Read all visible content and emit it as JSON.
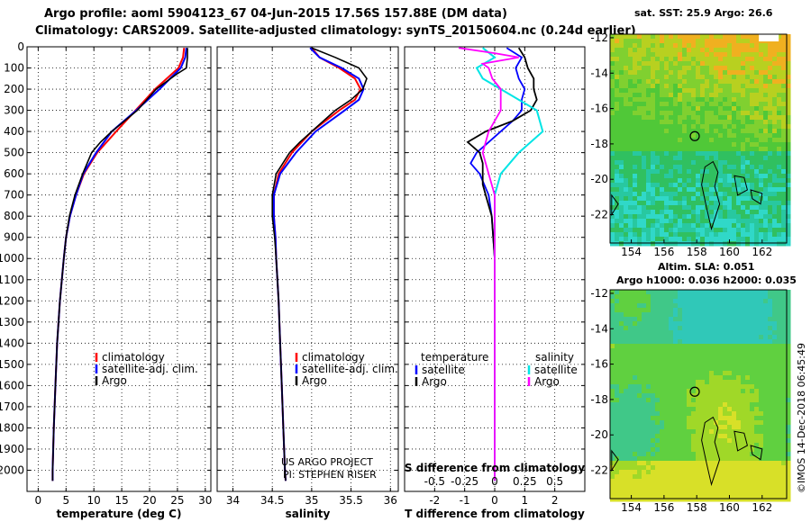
{
  "header": {
    "title_line1": "Argo profile: aoml 5904123_67 04-Jun-2015 17.56S 157.88E (DM data)",
    "title_line2": "Climatology: CARS2009. Satellite-adjusted climatology: synTS_20150604.nc (0.24d earlier)"
  },
  "colors": {
    "climatology": "#ff0000",
    "satellite": "#0000ff",
    "argo": "#000000",
    "sat_salinity": "#00e5e5",
    "argo_salinity": "#ff00ff"
  },
  "credits": {
    "project": "US ARGO PROJECT",
    "pi": "PI: STEPHEN RISER",
    "imos": "©IMOS 14-Dec-2018 06:45:49"
  },
  "maps": {
    "sst_title": "sat. SST: 25.9 Argo: 26.6",
    "sla_title_line1": "Altim. SLA: 0.051",
    "sla_title_line2": "Argo h1000: 0.036 h2000: 0.035",
    "x_ticks": [
      154,
      156,
      158,
      160,
      162
    ],
    "y_ticks": [
      -12,
      -14,
      -16,
      -18,
      -20,
      -22
    ],
    "lon_range": [
      152.7,
      163.5
    ],
    "lat_range": [
      -23.6,
      -11.8
    ],
    "float_position": {
      "lon": 157.88,
      "lat": -17.56
    }
  },
  "chart_data": [
    {
      "type": "line",
      "panel": "temperature",
      "xlabel": "temperature (deg C)",
      "ylabel": "",
      "xlim": [
        -2,
        31
      ],
      "ylim": [
        2100,
        0
      ],
      "x_ticks": [
        0,
        5,
        10,
        15,
        20,
        25,
        30
      ],
      "y_ticks": [
        0,
        100,
        200,
        300,
        400,
        500,
        600,
        700,
        800,
        900,
        1000,
        1100,
        1200,
        1300,
        1400,
        1500,
        1600,
        1700,
        1800,
        1900,
        2000
      ],
      "legend": [
        "climatology",
        "satellite-adj. clim.",
        "Argo"
      ],
      "series": [
        {
          "name": "climatology",
          "depth": [
            5,
            50,
            100,
            200,
            300,
            400,
            500,
            600,
            700,
            800,
            900,
            1000,
            1200,
            1400,
            1600,
            1800,
            2000,
            2050
          ],
          "values": [
            26.2,
            26.0,
            25.2,
            21.0,
            17.5,
            14.0,
            10.6,
            8.2,
            6.8,
            5.7,
            5.0,
            4.6,
            3.9,
            3.4,
            3.1,
            2.8,
            2.6,
            2.6
          ]
        },
        {
          "name": "satellite-adj. clim.",
          "depth": [
            5,
            50,
            100,
            200,
            300,
            400,
            500,
            600,
            700,
            800,
            900,
            1000,
            1200,
            1400,
            1600,
            1800,
            2000,
            2050
          ],
          "values": [
            26.6,
            26.4,
            25.6,
            21.8,
            17.6,
            13.2,
            10.4,
            8.1,
            6.8,
            5.7,
            5.0,
            4.6,
            3.9,
            3.4,
            3.1,
            2.8,
            2.6,
            2.6
          ]
        },
        {
          "name": "Argo",
          "depth": [
            5,
            50,
            100,
            130,
            200,
            300,
            400,
            450,
            500,
            600,
            700,
            800,
            900,
            1000,
            1200,
            1400,
            1600,
            1800,
            2000,
            2050
          ],
          "values": [
            26.8,
            26.8,
            26.6,
            24.8,
            21.2,
            17.8,
            13.2,
            11.2,
            9.6,
            8.0,
            6.6,
            5.6,
            5.0,
            4.6,
            3.9,
            3.4,
            3.1,
            2.8,
            2.6,
            2.6
          ]
        }
      ]
    },
    {
      "type": "line",
      "panel": "salinity",
      "xlabel": "salinity",
      "xlim": [
        33.8,
        36.1
      ],
      "ylim": [
        2100,
        0
      ],
      "x_ticks": [
        34,
        34.5,
        35,
        35.5,
        36
      ],
      "legend": [
        "climatology",
        "satellite-adj. clim.",
        "Argo"
      ],
      "series": [
        {
          "name": "climatology",
          "depth": [
            5,
            50,
            100,
            150,
            200,
            250,
            300,
            400,
            500,
            600,
            700,
            800,
            900,
            1000,
            1200,
            1400,
            1600,
            1800,
            2000,
            2050
          ],
          "values": [
            35.0,
            35.1,
            35.35,
            35.55,
            35.62,
            35.55,
            35.35,
            35.0,
            34.75,
            34.58,
            34.52,
            34.52,
            34.54,
            34.55,
            34.58,
            34.6,
            34.62,
            34.64,
            34.66,
            34.67
          ]
        },
        {
          "name": "satellite-adj. clim.",
          "depth": [
            5,
            50,
            100,
            150,
            200,
            250,
            300,
            400,
            500,
            600,
            700,
            800,
            900,
            1000,
            1200,
            1400,
            1600,
            1800,
            2000,
            2050
          ],
          "values": [
            34.98,
            35.1,
            35.38,
            35.6,
            35.66,
            35.6,
            35.42,
            35.05,
            34.8,
            34.6,
            34.52,
            34.52,
            34.54,
            34.55,
            34.58,
            34.6,
            34.62,
            34.64,
            34.66,
            34.67
          ]
        },
        {
          "name": "Argo",
          "depth": [
            5,
            50,
            100,
            150,
            200,
            250,
            300,
            400,
            450,
            500,
            600,
            700,
            800,
            900,
            1000,
            1200,
            1400,
            1600,
            1800,
            2000,
            2050
          ],
          "values": [
            35.0,
            35.3,
            35.6,
            35.7,
            35.65,
            35.5,
            35.3,
            35.0,
            34.85,
            34.72,
            34.55,
            34.5,
            34.5,
            34.53,
            34.55,
            34.58,
            34.6,
            34.62,
            34.64,
            34.66,
            34.67
          ]
        }
      ]
    },
    {
      "type": "line",
      "panel": "difference",
      "xlabel": "T difference from climatology",
      "top_axis_label": "S difference from climatology",
      "xlim": [
        -3,
        3
      ],
      "ylim": [
        2100,
        0
      ],
      "x_ticks": [
        -2,
        -1,
        0,
        1,
        2
      ],
      "x_tick_labels": [
        "-2",
        "-1",
        "0",
        "1",
        "2"
      ],
      "s_ticks": [
        "-0.5",
        "-0.25",
        "0",
        "0.25",
        "0.5"
      ],
      "legend_temperature_title": "temperature",
      "legend_salinity_title": "salinity",
      "legend": [
        "satellite",
        "Argo",
        "satellite",
        "Argo"
      ],
      "series": [
        {
          "name": "T satellite",
          "depth": [
            5,
            50,
            100,
            150,
            200,
            250,
            300,
            350,
            400,
            450,
            500,
            550,
            600,
            700,
            800,
            1000,
            1200,
            1500,
            2050
          ],
          "values": [
            0.4,
            0.9,
            0.7,
            0.8,
            1.0,
            0.9,
            0.9,
            0.6,
            0.2,
            -0.2,
            -0.6,
            -0.8,
            -0.5,
            -0.2,
            -0.1,
            0,
            0,
            0,
            0
          ]
        },
        {
          "name": "T Argo",
          "depth": [
            5,
            50,
            100,
            150,
            200,
            250,
            300,
            350,
            400,
            450,
            500,
            550,
            600,
            650,
            700,
            750,
            800,
            1000,
            1200,
            1500,
            2050
          ],
          "values": [
            0.8,
            1.0,
            1.1,
            1.3,
            1.3,
            1.4,
            1.2,
            0.6,
            -0.3,
            -0.9,
            -0.5,
            -0.4,
            -0.4,
            -0.4,
            -0.3,
            -0.2,
            -0.1,
            0,
            0,
            0,
            0
          ]
        },
        {
          "name": "S satellite",
          "depth": [
            5,
            50,
            100,
            150,
            200,
            300,
            400,
            500,
            600,
            700,
            800,
            1000,
            1500,
            2050
          ],
          "values": [
            -0.1,
            0.0,
            -0.15,
            -0.1,
            0.05,
            0.35,
            0.4,
            0.2,
            0.05,
            0.0,
            0.0,
            0.0,
            0.0,
            0.0
          ]
        },
        {
          "name": "S Argo",
          "depth": [
            5,
            30,
            50,
            80,
            100,
            150,
            200,
            300,
            400,
            500,
            600,
            700,
            800,
            1000,
            1500,
            2050
          ],
          "values": [
            -0.3,
            0.0,
            0.2,
            -0.1,
            -0.05,
            -0.02,
            0.05,
            0.05,
            -0.05,
            -0.1,
            -0.05,
            0.0,
            0.0,
            0.0,
            0.0,
            0.0
          ]
        }
      ]
    },
    {
      "type": "heatmap",
      "panel": "sat_sst_map",
      "title": "sat. SST: 25.9 Argo: 26.6"
    },
    {
      "type": "heatmap",
      "panel": "altimetry_sla_map",
      "title": "Altim. SLA: 0.051 / Argo h1000: 0.036 h2000: 0.035"
    }
  ]
}
